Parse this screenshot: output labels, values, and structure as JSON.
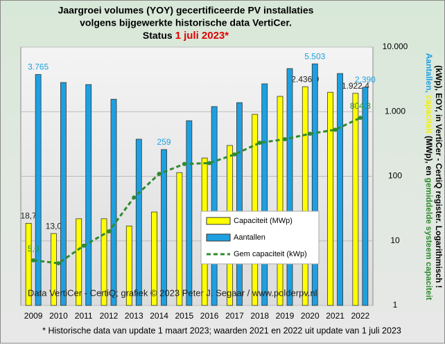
{
  "chart_data": {
    "type": "bar-line",
    "title": [
      "Jaargroei volumes (YOY) gecertificeerde  PV installaties",
      "volgens bijgewerkte historische data VertiCer."
    ],
    "status_prefix": "Status ",
    "status_date": "1 juli  2023*",
    "y_label_lines": [
      [
        {
          "text": "Aantallen, ",
          "color": "#1ea0e0"
        },
        {
          "text": "capaciteit ",
          "color": "#f0f000"
        },
        {
          "text": "(MWp), en ",
          "color": "#000000"
        },
        {
          "text": "gemiddelde systeem capaciteit",
          "color": "#2e8b2e"
        }
      ],
      [
        {
          "text": "(kWp), EOY, in VertiCer - CertiQ register. Logarithmisch !",
          "color": "#000000"
        }
      ]
    ],
    "watermark": "Data VertiCer - CertiQ; grafiek © 2023 Peter J. Segaar / www.polderpv.nl",
    "footnote": "* Historische data van update 1 maart 2023; waarden 2021 en 2022 uit update van 1 juli 2023",
    "categories": [
      "2009",
      "2010",
      "2011",
      "2012",
      "2013",
      "2014",
      "2015",
      "2016",
      "2017",
      "2018",
      "2019",
      "2020",
      "2021",
      "2022"
    ],
    "series": [
      {
        "name": "Capaciteit (MWp)",
        "color": "#ffff00",
        "kind": "bar",
        "values": [
          18.7,
          13.0,
          22,
          22,
          17,
          28,
          114,
          192,
          300,
          910,
          1730,
          2436.9,
          2000,
          1922.4
        ],
        "value_labels": [
          "18,7",
          "13,0",
          null,
          null,
          null,
          null,
          null,
          null,
          null,
          null,
          null,
          "2.436,9",
          null,
          "1.922,4"
        ]
      },
      {
        "name": "Aantallen",
        "color": "#1ea0e0",
        "kind": "bar",
        "values": [
          3765,
          2830,
          2630,
          1560,
          375,
          259,
          725,
          1200,
          1380,
          2700,
          4650,
          5503,
          3900,
          2390
        ],
        "value_labels": [
          "3.765",
          null,
          null,
          null,
          null,
          "259",
          null,
          null,
          null,
          null,
          null,
          "5.503",
          null,
          "2.390"
        ]
      },
      {
        "name": "Gem capaciteit (kWp)",
        "color": "#2e8b2e",
        "kind": "line",
        "values": [
          5.0,
          4.5,
          8.4,
          14,
          47,
          109,
          155,
          160,
          218,
          330,
          375,
          455,
          525,
          804.3
        ],
        "value_labels": [
          "5,0",
          null,
          null,
          null,
          null,
          null,
          null,
          null,
          null,
          null,
          null,
          null,
          null,
          "804,3"
        ]
      }
    ],
    "ylim": [
      1,
      10000
    ],
    "log_y": true,
    "yticks": [
      1,
      10,
      100,
      {
        "value": 1000,
        "label": "1.000"
      },
      {
        "value": 10000,
        "label": "10.000"
      }
    ]
  }
}
